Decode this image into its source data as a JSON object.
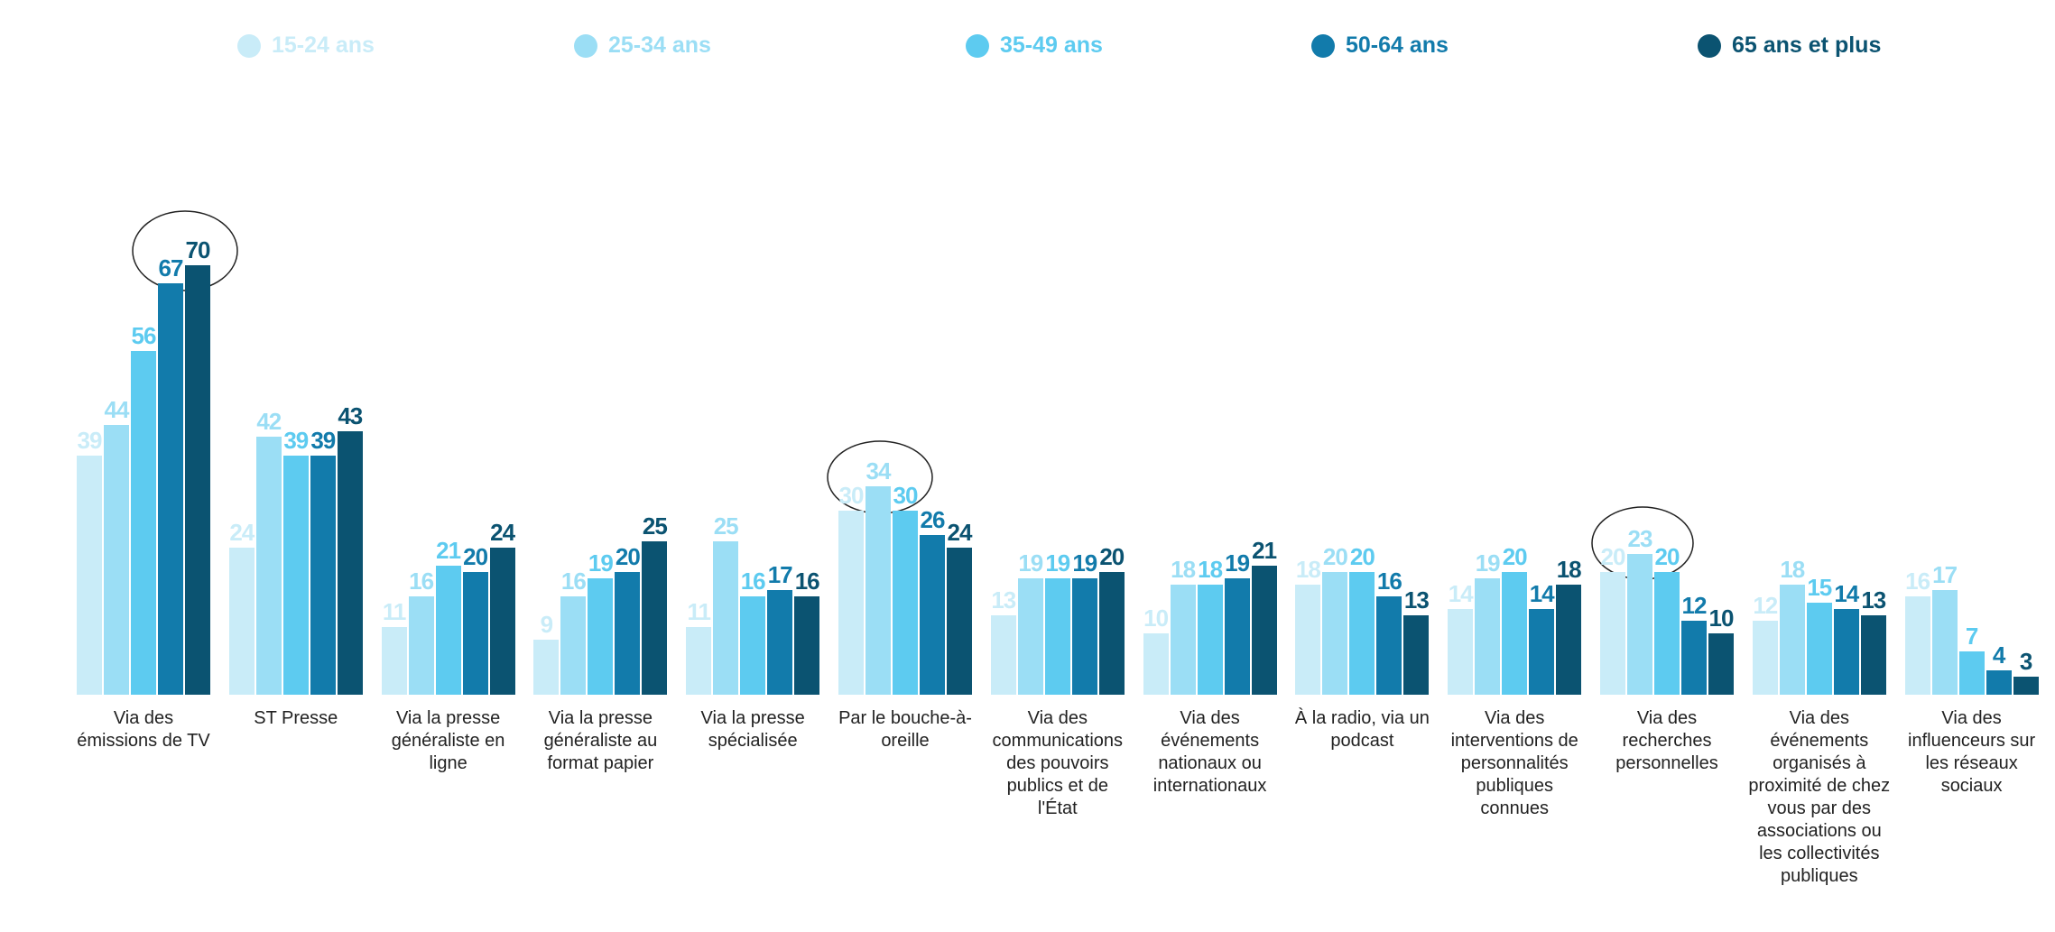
{
  "chart_data": {
    "type": "bar",
    "categories": [
      "Via des émissions de TV",
      "ST Presse",
      "Via la presse généraliste en ligne",
      "Via la presse généraliste au format papier",
      "Via la presse spécialisée",
      "Par le bouche-à-oreille",
      "Via des communications des pouvoirs publics et de l'État",
      "Via des événements nationaux ou internationaux",
      "À la radio, via un podcast",
      "Via des interventions de personnalités publiques connues",
      "Via des recherches personnelles",
      "Via des événements organisés à proximité de chez vous par des associations ou les collectivités publiques",
      "Via des influenceurs sur les réseaux sociaux"
    ],
    "series": [
      {
        "name": "15-24 ans",
        "color": "#c9ecf8",
        "values": [
          39,
          24,
          11,
          9,
          11,
          30,
          13,
          10,
          18,
          14,
          20,
          12,
          16
        ]
      },
      {
        "name": "25-34 ans",
        "color": "#9bdef5",
        "values": [
          44,
          42,
          16,
          16,
          25,
          34,
          19,
          18,
          20,
          19,
          23,
          18,
          17
        ]
      },
      {
        "name": "35-49 ans",
        "color": "#5dcbf0",
        "values": [
          56,
          39,
          21,
          19,
          16,
          30,
          19,
          18,
          20,
          20,
          20,
          15,
          7
        ]
      },
      {
        "name": "50-64 ans",
        "color": "#127bab",
        "values": [
          67,
          39,
          20,
          20,
          17,
          26,
          19,
          19,
          16,
          14,
          12,
          14,
          4
        ]
      },
      {
        "name": "65 ans et plus",
        "color": "#0b5371",
        "values": [
          70,
          43,
          24,
          25,
          16,
          24,
          20,
          21,
          13,
          18,
          10,
          13,
          3
        ]
      }
    ]
  }
}
